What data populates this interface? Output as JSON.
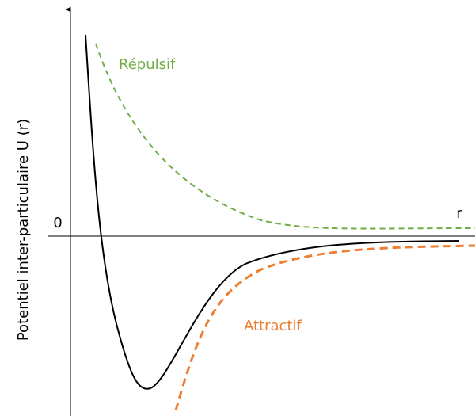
{
  "labels": {
    "y_axis": "Potentiel inter-particulaire U (r)",
    "origin": "0",
    "x_axis": "r",
    "repulsive": "Répulsif",
    "attractive": "Attractif"
  }
}
